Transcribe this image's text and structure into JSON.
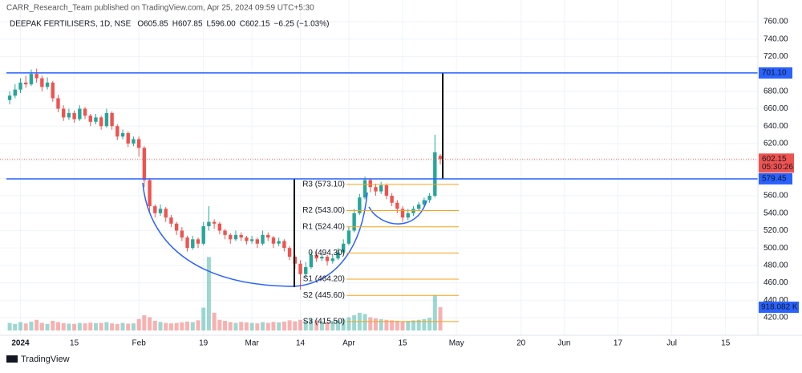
{
  "header": {
    "published": "CARR_Research_Team published on TradingView.com, Apr 25, 2024 09:59 UTC+5:30",
    "footer_brand": "TradingView"
  },
  "chart_data": {
    "type": "candlestick",
    "title": "DEEPAK FERTILISERS, 1D, NSE",
    "ohlc_legend": [
      {
        "key": "O",
        "text": "605.85"
      },
      {
        "key": "H",
        "text": "607.85"
      },
      {
        "key": "L",
        "text": "596.00"
      },
      {
        "key": "C",
        "text": "602.15"
      }
    ],
    "change": "−6.25 (−1.03%)",
    "up_color": "#26a69a",
    "down_color": "#ef5350",
    "series": [
      {
        "name": "DEEPAK FERTILISERS",
        "open": [
          670,
          675,
          682,
          690,
          688,
          700,
          695,
          685,
          690,
          672,
          660,
          650,
          655,
          648,
          660,
          652,
          645,
          650,
          640,
          655,
          640,
          628,
          632,
          620,
          625,
          615,
          578,
          548,
          540,
          545,
          535,
          528,
          520,
          512,
          500,
          510,
          505,
          525,
          530,
          528,
          520,
          515,
          510,
          515,
          512,
          508,
          510,
          505,
          515,
          512,
          505,
          508,
          500,
          490,
          482,
          470,
          478,
          492,
          488,
          490,
          485,
          488,
          495,
          505,
          520,
          540,
          558,
          578,
          570,
          565,
          572,
          560,
          552,
          545,
          535,
          540,
          545,
          550,
          555,
          560,
          605.85
        ],
        "high": [
          680,
          688,
          695,
          698,
          705,
          706,
          698,
          696,
          692,
          676,
          664,
          660,
          658,
          664,
          662,
          654,
          654,
          652,
          660,
          657,
          642,
          636,
          634,
          628,
          628,
          617,
          580,
          550,
          550,
          547,
          538,
          530,
          524,
          514,
          514,
          512,
          530,
          548,
          533,
          530,
          522,
          517,
          520,
          518,
          514,
          514,
          512,
          520,
          518,
          514,
          512,
          510,
          502,
          492,
          486,
          484,
          496,
          496,
          494,
          492,
          492,
          500,
          510,
          525,
          545,
          562,
          582,
          580,
          574,
          576,
          574,
          563,
          555,
          548,
          545,
          548,
          553,
          558,
          563,
          630,
          607.85
        ],
        "low": [
          665,
          672,
          678,
          684,
          686,
          690,
          680,
          682,
          668,
          656,
          646,
          647,
          644,
          646,
          648,
          640,
          642,
          636,
          638,
          636,
          624,
          625,
          616,
          617,
          605,
          570,
          542,
          535,
          537,
          530,
          524,
          515,
          508,
          496,
          498,
          500,
          503,
          520,
          522,
          516,
          510,
          505,
          508,
          508,
          504,
          505,
          500,
          503,
          508,
          500,
          502,
          496,
          486,
          476,
          452,
          466,
          476,
          484,
          485,
          480,
          482,
          486,
          493,
          503,
          518,
          538,
          556,
          564,
          560,
          562,
          556,
          548,
          540,
          530,
          532,
          537,
          542,
          547,
          552,
          558,
          596
        ],
        "close": [
          675,
          682,
          690,
          688,
          700,
          695,
          685,
          690,
          672,
          660,
          650,
          655,
          648,
          660,
          652,
          645,
          650,
          640,
          655,
          640,
          628,
          632,
          620,
          625,
          615,
          578,
          548,
          540,
          545,
          535,
          528,
          520,
          512,
          500,
          510,
          505,
          525,
          530,
          528,
          520,
          515,
          510,
          515,
          512,
          508,
          510,
          505,
          515,
          512,
          505,
          508,
          500,
          490,
          482,
          470,
          478,
          492,
          488,
          490,
          485,
          488,
          495,
          505,
          520,
          540,
          558,
          578,
          570,
          565,
          572,
          560,
          552,
          545,
          535,
          540,
          545,
          550,
          555,
          560,
          610,
          602.15
        ],
        "volume": [
          300,
          260,
          330,
          280,
          350,
          420,
          300,
          260,
          380,
          330,
          290,
          270,
          260,
          300,
          280,
          310,
          290,
          300,
          330,
          280,
          260,
          300,
          270,
          280,
          450,
          600,
          520,
          380,
          340,
          300,
          280,
          300,
          320,
          350,
          330,
          400,
          900,
          2900,
          700,
          420,
          380,
          330,
          300,
          340,
          320,
          300,
          280,
          330,
          300,
          340,
          320,
          350,
          400,
          360,
          420,
          380,
          450,
          400,
          360,
          340,
          380,
          400,
          450,
          520,
          600,
          700,
          650,
          520,
          480,
          450,
          420,
          400,
          380,
          360,
          380,
          400,
          420,
          450,
          500,
          1400,
          918.082
        ]
      }
    ],
    "volume_label": "918.082 K",
    "ylim": [
      420,
      760
    ],
    "yticks": [
      {
        "value": 420,
        "label": "420.00"
      },
      {
        "value": 440,
        "label": "440.00"
      },
      {
        "value": 460,
        "label": "460.00"
      },
      {
        "value": 480,
        "label": "480.00"
      },
      {
        "value": 500,
        "label": "500.00"
      },
      {
        "value": 520,
        "label": "520.00"
      },
      {
        "value": 540,
        "label": "540.00"
      },
      {
        "value": 560,
        "label": "560.00"
      },
      {
        "value": 580,
        "label": "580.00"
      },
      {
        "value": 600,
        "label": "600.00"
      },
      {
        "value": 620,
        "label": "620.00"
      },
      {
        "value": 640,
        "label": "640.00"
      },
      {
        "value": 660,
        "label": "660.00"
      },
      {
        "value": 680,
        "label": "680.00"
      },
      {
        "value": 700,
        "label": "700.00"
      },
      {
        "value": 720,
        "label": "720.00"
      },
      {
        "value": 740,
        "label": "740.00"
      },
      {
        "value": 760,
        "label": "760.00"
      }
    ],
    "xlim": [
      -1.8,
      139
    ],
    "xticks": [
      {
        "value": 2,
        "label": "2024"
      },
      {
        "value": 12,
        "label": "15"
      },
      {
        "value": 24,
        "label": "Feb"
      },
      {
        "value": 36,
        "label": "19"
      },
      {
        "value": 45,
        "label": "Mar"
      },
      {
        "value": 54,
        "label": "14"
      },
      {
        "value": 63,
        "label": "Apr"
      },
      {
        "value": 73,
        "label": "15"
      },
      {
        "value": 83,
        "label": "May"
      },
      {
        "value": 95,
        "label": "20"
      },
      {
        "value": 103,
        "label": "Jun"
      },
      {
        "value": 113,
        "label": "17"
      },
      {
        "value": 123,
        "label": "Jul"
      },
      {
        "value": 133,
        "label": "15"
      }
    ],
    "hlines": [
      {
        "value": 701.1,
        "label": "701.10"
      },
      {
        "value": 579.45,
        "label": "579.45"
      }
    ],
    "last_price": {
      "value": 602.15,
      "label": "602.15",
      "countdown": "05:30:26"
    },
    "pivots": [
      {
        "label": "R3 (573.10)",
        "value": 573.1
      },
      {
        "label": "R2 (543.00)",
        "value": 543.0
      },
      {
        "label": "R1 (524.40)",
        "value": 524.4
      },
      {
        "label": "0 (494.30)",
        "value": 494.3
      },
      {
        "label": "S1 (464.20)",
        "value": 464.2
      },
      {
        "label": "S2 (445.60)",
        "value": 445.6
      },
      {
        "label": "S3 (415.50)",
        "value": 415.5
      }
    ],
    "grid": true
  }
}
